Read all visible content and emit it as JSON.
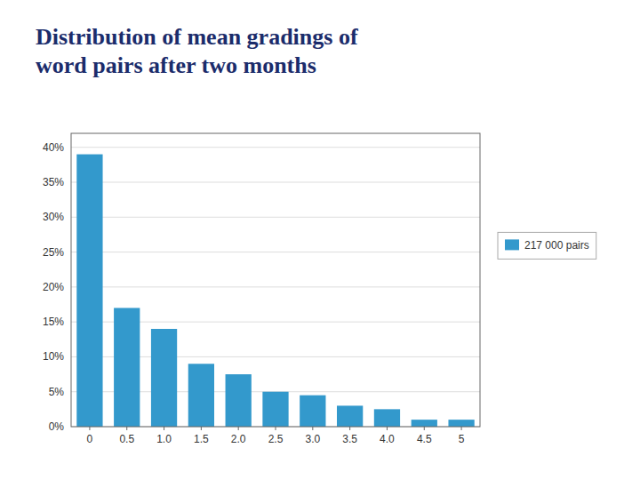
{
  "chart_data": {
    "type": "bar",
    "title": "Distribution of mean gradings of\nword pairs after two months",
    "categories": [
      "0",
      "0.5",
      "1.0",
      "1.5",
      "2.0",
      "2.5",
      "3.0",
      "3.5",
      "4.0",
      "4.5",
      "5"
    ],
    "series": [
      {
        "name": "217 000 pairs",
        "color": "#3399CC",
        "values": [
          0.39,
          0.17,
          0.14,
          0.09,
          0.075,
          0.05,
          0.045,
          0.03,
          0.025,
          0.01,
          0.01
        ]
      }
    ],
    "ylim": [
      0,
      0.42
    ],
    "yticks": [
      {
        "value": 0.0,
        "label": "0%"
      },
      {
        "value": 0.05,
        "label": "5%"
      },
      {
        "value": 0.1,
        "label": "10%"
      },
      {
        "value": 0.15,
        "label": "15%"
      },
      {
        "value": 0.2,
        "label": "20%"
      },
      {
        "value": 0.25,
        "label": "25%"
      },
      {
        "value": 0.3,
        "label": "30%"
      },
      {
        "value": 0.35,
        "label": "35%"
      },
      {
        "value": 0.4,
        "label": "40%"
      }
    ],
    "grid": true,
    "legend": "right"
  }
}
